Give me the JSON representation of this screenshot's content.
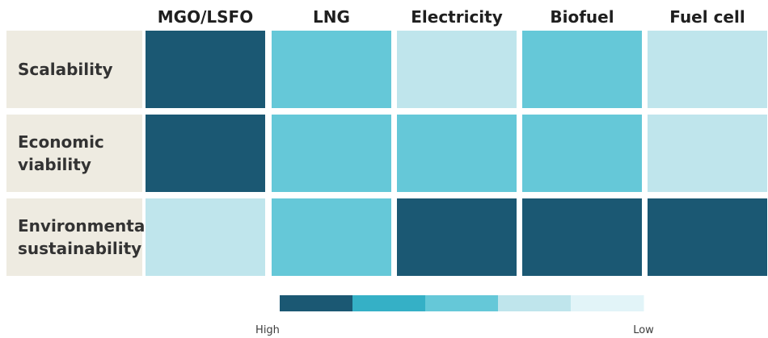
{
  "chart_data": {
    "type": "heatmap",
    "columns": [
      "MGO/LSFO",
      "LNG",
      "Electricity",
      "Biofuel",
      "Fuel cell"
    ],
    "rows": [
      [
        "Scalability"
      ],
      [
        "Economic",
        "viability"
      ],
      [
        "Environmental",
        "sustainability"
      ]
    ],
    "values": [
      [
        1,
        3,
        4,
        3,
        4
      ],
      [
        1,
        3,
        3,
        3,
        4
      ],
      [
        4,
        3,
        1,
        1,
        1
      ]
    ],
    "scale": {
      "levels": [
        1,
        2,
        3,
        4,
        5
      ],
      "colors": [
        "#1b5873",
        "#35b0c6",
        "#65c8d8",
        "#bfe5ec",
        "#e2f4f8"
      ],
      "high_label": "High",
      "low_label": "Low"
    },
    "row_header_bg": "#eeebe1"
  }
}
